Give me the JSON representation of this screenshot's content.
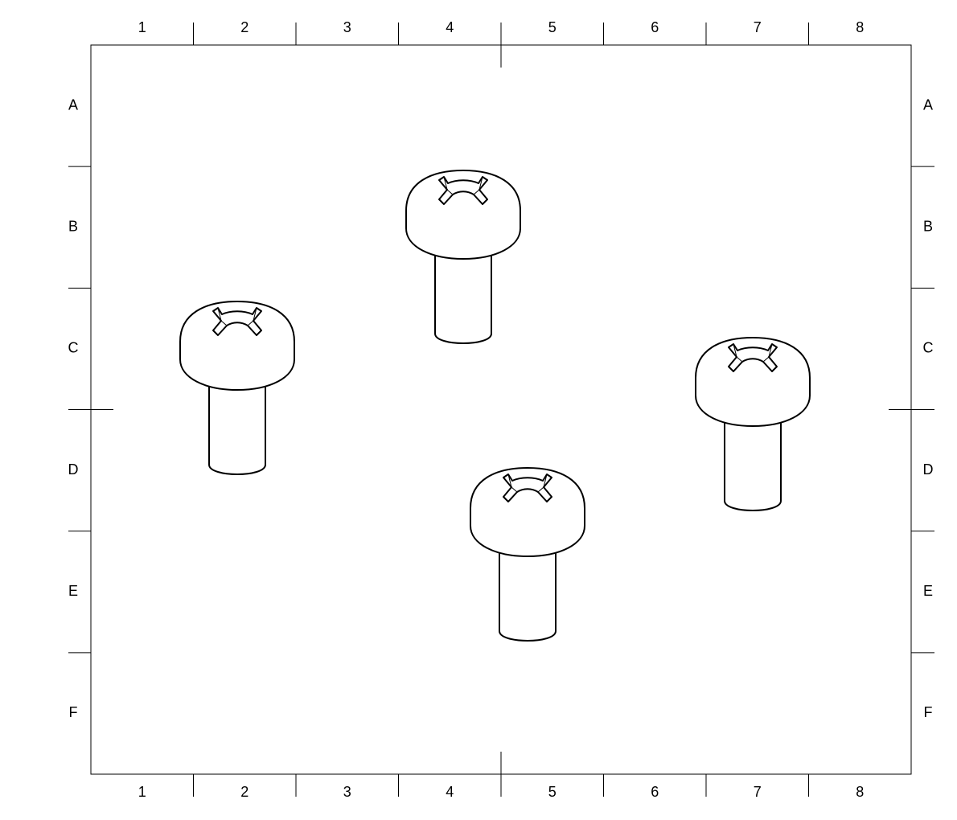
{
  "sheet": {
    "columns": [
      "1",
      "2",
      "3",
      "4",
      "5",
      "6",
      "7",
      "8"
    ],
    "rows": [
      "A",
      "B",
      "C",
      "D",
      "E",
      "F"
    ],
    "line_color": "#000000",
    "background": "#ffffff"
  },
  "parts": [
    {
      "name": "phillips-pan-head-screw",
      "zone": "B4"
    },
    {
      "name": "phillips-pan-head-screw",
      "zone": "C2"
    },
    {
      "name": "phillips-pan-head-screw",
      "zone": "C7"
    },
    {
      "name": "phillips-pan-head-screw",
      "zone": "D5"
    }
  ]
}
